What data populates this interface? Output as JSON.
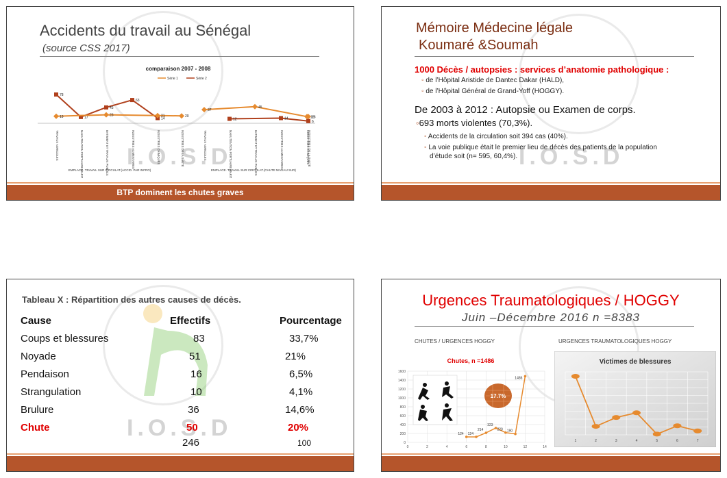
{
  "slide1": {
    "title": "Accidents du travail au Sénégal",
    "subtitle": "(source CSS 2017)",
    "chart_title": "comparaison 2007 - 2008",
    "legend": [
      "Série 1",
      "Série 2"
    ],
    "footer": "BTP dominent les chutes graves",
    "axis_left_caption": "EMPLACE. TRAVAIL SUR CIRCULAT.(ACCID. PAR INFRO)",
    "axis_right_caption": "EMPLACE. TRAVAIL SUR CIRCULAT.(CHUTE NIVEAU SUR)",
    "categories": [
      "TRAVAUX AGRICOLES",
      "MANUTENTION PORTUAIRE MARITIME",
      "BATIMENT ET TRAVAUX PUBLICS",
      "INDUSTRIES ALIMENTAIRES",
      "INDUSTRIES CHIMIQUES",
      "INDUSTRIES DE LA SANTÉ"
    ],
    "series1_left": [
      "19",
      "",
      "23",
      "",
      "21",
      "20"
    ],
    "series2_left": [
      "78",
      "17",
      "43",
      "63",
      "14",
      ""
    ],
    "series1_right": [
      "37",
      "",
      "45",
      "",
      "18",
      "18"
    ],
    "series2_right": [
      "",
      "12",
      "",
      "14",
      "",
      "6"
    ]
  },
  "slide2": {
    "title_line1": "Mémoire Médecine légale",
    "title_line2": "Koumaré &Soumah",
    "heading": "1000 Décès / autopsies :  services d’anatomie pathologique  :",
    "bullets1": [
      "de l’Hôpital  Aristide de Dantec Dakar (HALD),",
      "de l’Hôpital Général de  Grand-Yoff (HOGGY)."
    ],
    "heading2": "De 2003 à 2012 : Autopsie ou Examen de corps.",
    "sub_heading": "693 morts violentes (70,3%).",
    "bullets2": [
      "Accidents de la circulation soit 394 cas (40%).",
      "La voie publique était le premier lieu de décès des patients  de la population",
      "d’étude soit (n= 595, 60,4%)."
    ]
  },
  "slide3": {
    "title": "Tableau X : Répartition  des autres causes de décès.",
    "headers": [
      "Cause",
      "Effectifs",
      "Pourcentage"
    ],
    "rows": [
      [
        "Coups et blessures",
        "83",
        "33,7%"
      ],
      [
        "Noyade",
        "51",
        "21%"
      ],
      [
        "Pendaison",
        "16",
        "6,5%"
      ],
      [
        "Strangulation",
        "10",
        "4,1%"
      ],
      [
        "Brulure",
        "36",
        "14,6%"
      ],
      [
        "Chute",
        "50",
        "20%"
      ]
    ],
    "total": [
      "",
      "246",
      "100"
    ],
    "highlight_color": "#e00000"
  },
  "slide4": {
    "title": "Urgences Traumatologiques /  HOGGY",
    "subtitle": "Juin –Décembre 2016   n =8383",
    "left_label": "CHUTES / URGENCES HOGGY",
    "right_label": "URGENCES  TRAUMATOLOGIQUES HOGGY",
    "left_chart_title": "Chutes,  n =1486",
    "badge": "17.7%",
    "right_chart_title": "Victimes de blessures",
    "chart_data": [
      {
        "type": "line",
        "title": "Chutes,  n =1486",
        "x": [
          6,
          7,
          8,
          9,
          10,
          11,
          12
        ],
        "values": [
          124,
          124,
          214,
          323,
          220,
          190,
          1486
        ],
        "value_labels": [
          "124",
          "124",
          "214",
          "323",
          "220",
          "190",
          "1486"
        ],
        "ylim": [
          0,
          1600
        ],
        "yticks": [
          "0",
          "200",
          "400",
          "600",
          "800",
          "1000",
          "1200",
          "1400",
          "1600"
        ],
        "xticks": [
          "0",
          "2",
          "4",
          "6",
          "8",
          "10",
          "12",
          "14"
        ]
      },
      {
        "type": "line",
        "title": "Victimes de blessures",
        "categories": [
          "1",
          "2",
          "3",
          "4",
          "5",
          "6",
          "7"
        ],
        "values": [
          1486,
          216,
          441,
          560,
          19,
          230,
          100
        ],
        "ylim": [
          0,
          1600
        ]
      }
    ]
  },
  "colors": {
    "footer": "#b5552b",
    "series1": "#e68a2e",
    "series2": "#b0401c",
    "accent": "#e00000",
    "title_brown": "#7b2e12"
  }
}
